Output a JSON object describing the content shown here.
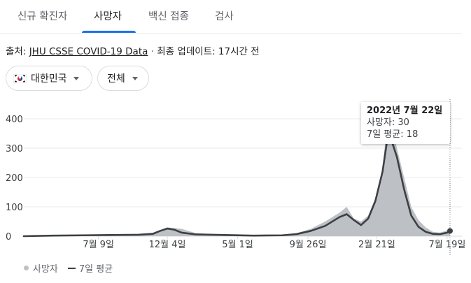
{
  "tabs": [
    {
      "label": "신규 확진자",
      "active": false
    },
    {
      "label": "사망자",
      "active": true
    },
    {
      "label": "백신 접종",
      "active": false
    },
    {
      "label": "검사",
      "active": false
    }
  ],
  "source": {
    "prefix": "출처: ",
    "link_text": "JHU CSSE COVID-19 Data",
    "separator": " · ",
    "update_text": "최종 업데이트: 17시간 전"
  },
  "filters": {
    "region": {
      "flag_icon": "south-korea-flag-icon",
      "label": "대한민국"
    },
    "period": {
      "label": "전체"
    }
  },
  "tooltip": {
    "date": "2022년 7월 22일",
    "deaths_line": "사망자: 30",
    "avg_line": "7일 평균: 18"
  },
  "legend": {
    "bars_label": "사망자",
    "line_label": "7일 평균"
  },
  "colors": {
    "accent": "#1a73e8",
    "bars": "#bdc1c6",
    "line": "#3c4043",
    "grid": "#e8eaed"
  },
  "chart_data": {
    "type": "bar",
    "title": "",
    "xlabel": "",
    "ylabel": "",
    "ylim": [
      0,
      420
    ],
    "y_ticks": [
      0,
      100,
      200,
      300,
      400
    ],
    "x_tick_labels": [
      "7월 9일",
      "12월 4일",
      "5월 1일",
      "9월 26일",
      "2월 21일",
      "7월 19일"
    ],
    "x_tick_months": [
      5.2,
      10.0,
      14.9,
      19.8,
      24.6,
      29.5
    ],
    "grid": true,
    "legend_position": "bottom-left",
    "series": [
      {
        "name": "사망자",
        "kind": "bar",
        "x": [
          0,
          2,
          4,
          6,
          8,
          9,
          10,
          11,
          12,
          14,
          16,
          18,
          19,
          20,
          21,
          22,
          22.5,
          23,
          23.5,
          24,
          24.5,
          25,
          25.3,
          25.6,
          26,
          26.5,
          27,
          27.5,
          28,
          28.5,
          29,
          29.5,
          29.7
        ],
        "y": [
          0,
          2,
          4,
          5,
          8,
          12,
          30,
          25,
          10,
          5,
          3,
          5,
          10,
          25,
          50,
          80,
          100,
          60,
          50,
          70,
          130,
          230,
          380,
          390,
          300,
          200,
          100,
          55,
          30,
          15,
          12,
          20,
          30
        ]
      },
      {
        "name": "7일 평균",
        "kind": "line",
        "x": [
          0,
          2,
          4,
          6,
          8,
          9,
          9.5,
          10,
          10.5,
          11,
          12,
          14,
          16,
          18,
          19,
          20,
          21,
          22,
          22.5,
          23,
          23.5,
          24,
          24.5,
          25,
          25.3,
          25.6,
          26,
          26.5,
          27,
          27.5,
          28,
          28.5,
          29,
          29.5,
          29.7
        ],
        "y": [
          0,
          2,
          3,
          4,
          5,
          8,
          18,
          26,
          22,
          12,
          6,
          4,
          2,
          3,
          7,
          18,
          35,
          65,
          75,
          55,
          38,
          60,
          120,
          220,
          320,
          330,
          270,
          160,
          70,
          32,
          15,
          8,
          7,
          12,
          18
        ]
      }
    ],
    "highlight": {
      "x": 29.7,
      "value": 30,
      "avg": 18
    }
  }
}
